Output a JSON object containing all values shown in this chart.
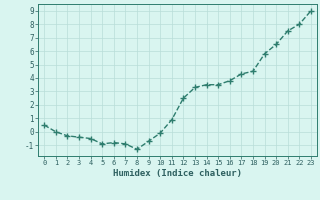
{
  "x": [
    0,
    1,
    2,
    3,
    4,
    5,
    6,
    7,
    8,
    9,
    10,
    11,
    12,
    13,
    14,
    15,
    16,
    17,
    18,
    19,
    20,
    21,
    22,
    23
  ],
  "y": [
    0.5,
    0.0,
    -0.3,
    -0.4,
    -0.5,
    -0.9,
    -0.8,
    -0.9,
    -1.3,
    -0.7,
    -0.1,
    0.9,
    2.5,
    3.3,
    3.5,
    3.5,
    3.8,
    4.3,
    4.5,
    5.8,
    6.5,
    7.5,
    8.0,
    9.0
  ],
  "xlabel": "Humidex (Indice chaleur)",
  "ylim": [
    -1.8,
    9.5
  ],
  "xlim": [
    -0.5,
    23.5
  ],
  "yticks": [
    -1,
    0,
    1,
    2,
    3,
    4,
    5,
    6,
    7,
    8,
    9
  ],
  "xticks": [
    0,
    1,
    2,
    3,
    4,
    5,
    6,
    7,
    8,
    9,
    10,
    11,
    12,
    13,
    14,
    15,
    16,
    17,
    18,
    19,
    20,
    21,
    22,
    23
  ],
  "line_color": "#2e7d6e",
  "bg_color": "#d9f5f0",
  "grid_color": "#b8ddd8",
  "font_color": "#2e6060",
  "marker": "+",
  "markersize": 4,
  "linewidth": 1.0
}
